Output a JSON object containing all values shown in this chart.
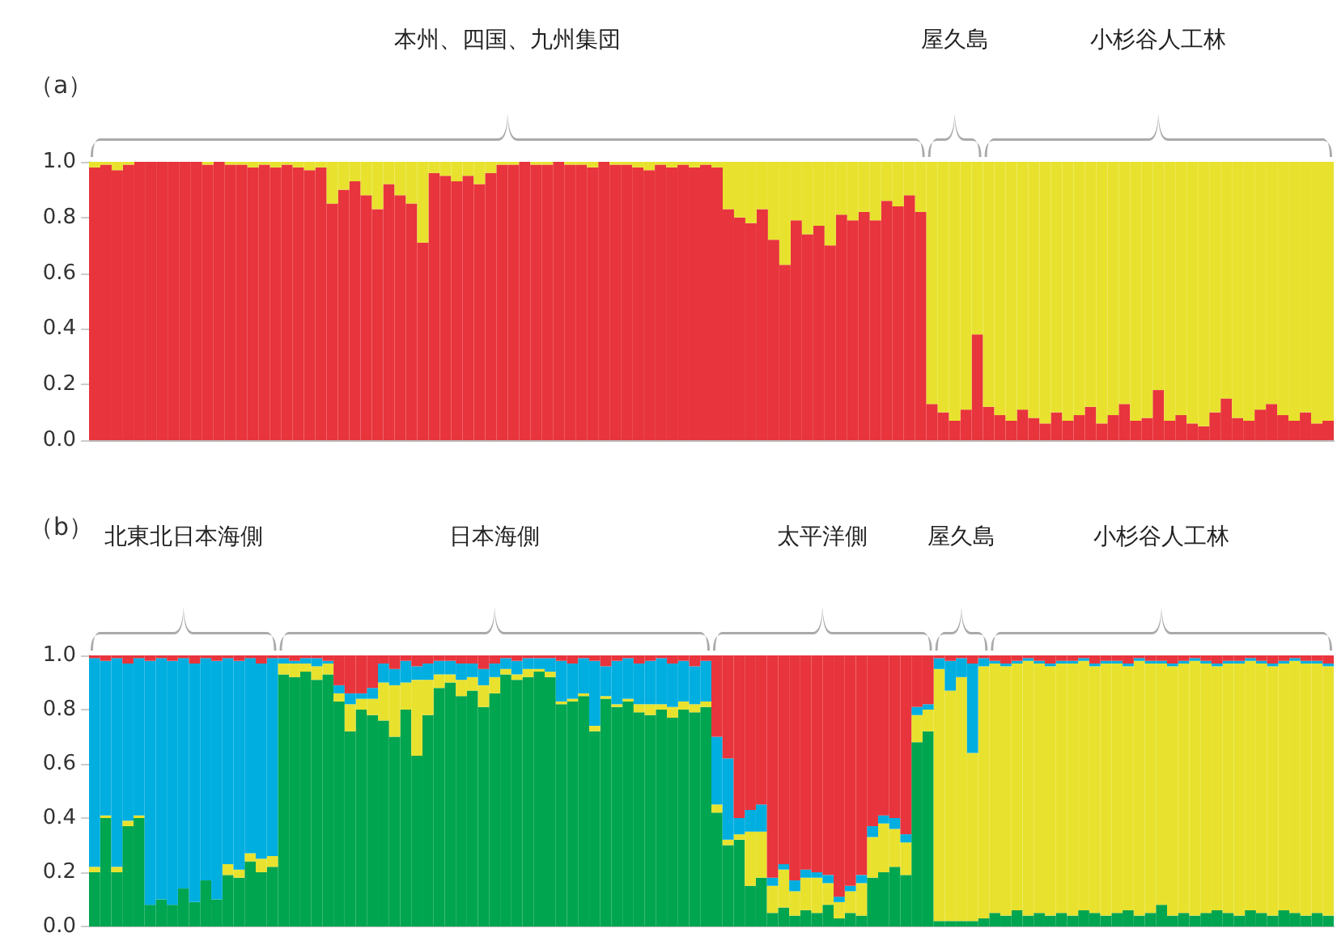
{
  "chart_data": [
    {
      "type": "bar",
      "title": "（a）",
      "stacked": true,
      "tick_labels": "y",
      "grid": false,
      "annotations": [
        "本州、四国、九州集団",
        "屋久島",
        "小杉谷人工林"
      ],
      "ylim": [
        0,
        1
      ],
      "yticks": [
        {
          "value": 0,
          "label": "0.0"
        },
        {
          "value": 0.2,
          "label": "0.2"
        },
        {
          "value": 0.4,
          "label": "0.4"
        },
        {
          "value": 0.6,
          "label": "0.6"
        },
        {
          "value": 0.8,
          "label": "0.8"
        },
        {
          "value": 1,
          "label": "1.0"
        }
      ],
      "categories": [
        null,
        null,
        null,
        null,
        null,
        null,
        null,
        null,
        null,
        null,
        null,
        null,
        null,
        null,
        null,
        null,
        null,
        null,
        null,
        null,
        null,
        null,
        null,
        null,
        null,
        null,
        null,
        null,
        null,
        null,
        null,
        null,
        null,
        null,
        null,
        null,
        null,
        null,
        null,
        null,
        null,
        null,
        null,
        null,
        null,
        null,
        null,
        null,
        null,
        null,
        null,
        null,
        null,
        null,
        null,
        null,
        null,
        null,
        null,
        null,
        null,
        null,
        null,
        null,
        null,
        null,
        null,
        null,
        null,
        null,
        null,
        null,
        null,
        null,
        null,
        null,
        null,
        null,
        null,
        null,
        null,
        null,
        null,
        null,
        null,
        null,
        null,
        null,
        null,
        null,
        null,
        null,
        null,
        null,
        null,
        null,
        null,
        null,
        null,
        null,
        null,
        null,
        null,
        null,
        null,
        null,
        null,
        null,
        null,
        null
      ],
      "series": [
        {
          "color": "#e8343c",
          "values": [
            0.98,
            0.99,
            0.97,
            0.99,
            1,
            1,
            1,
            1,
            1,
            1,
            0.99,
            1,
            0.99,
            0.99,
            0.98,
            0.99,
            0.98,
            0.99,
            0.98,
            0.97,
            0.98,
            0.85,
            0.9,
            0.93,
            0.88,
            0.83,
            0.92,
            0.88,
            0.85,
            0.71,
            0.96,
            0.95,
            0.93,
            0.95,
            0.92,
            0.96,
            0.99,
            0.99,
            1,
            0.99,
            0.99,
            1,
            0.99,
            0.99,
            0.98,
            1,
            0.99,
            0.99,
            0.98,
            0.97,
            0.99,
            0.98,
            0.99,
            0.98,
            0.99,
            0.98,
            0.83,
            0.8,
            0.78,
            0.83,
            0.72,
            0.63,
            0.79,
            0.74,
            0.77,
            0.7,
            0.81,
            0.79,
            0.82,
            0.79,
            0.86,
            0.84,
            0.88,
            0.82,
            0.13,
            0.1,
            0.07,
            0.11,
            0.38,
            0.12,
            0.09,
            0.07,
            0.11,
            0.08,
            0.06,
            0.1,
            0.07,
            0.09,
            0.12,
            0.06,
            0.09,
            0.13,
            0.07,
            0.08,
            0.18,
            0.07,
            0.09,
            0.06,
            0.05,
            0.1,
            0.15,
            0.08,
            0.07,
            0.11,
            0.13,
            0.09,
            0.07,
            0.1,
            0.06,
            0.07
          ]
        },
        {
          "color": "#e8e22e",
          "values": [
            0.02,
            0.01,
            0.03,
            0.01,
            0,
            0,
            0,
            0,
            0,
            0,
            0.01,
            0,
            0.01,
            0.01,
            0.02,
            0.01,
            0.02,
            0.01,
            0.02,
            0.03,
            0.02,
            0.15,
            0.1,
            0.07,
            0.12,
            0.17,
            0.08,
            0.12,
            0.15,
            0.29,
            0.04,
            0.05,
            0.07,
            0.05,
            0.08,
            0.04,
            0.01,
            0.01,
            0,
            0.01,
            0.01,
            0,
            0.01,
            0.01,
            0.02,
            0,
            0.01,
            0.01,
            0.02,
            0.03,
            0.01,
            0.02,
            0.01,
            0.02,
            0.01,
            0.02,
            0.17,
            0.2,
            0.22,
            0.17,
            0.28,
            0.37,
            0.21,
            0.26,
            0.23,
            0.3,
            0.19,
            0.21,
            0.18,
            0.21,
            0.14,
            0.16,
            0.12,
            0.18,
            0.87,
            0.9,
            0.93,
            0.89,
            0.62,
            0.88,
            0.91,
            0.93,
            0.89,
            0.92,
            0.94,
            0.9,
            0.93,
            0.91,
            0.88,
            0.94,
            0.91,
            0.87,
            0.93,
            0.92,
            0.82,
            0.93,
            0.91,
            0.94,
            0.95,
            0.9,
            0.85,
            0.92,
            0.93,
            0.89,
            0.87,
            0.91,
            0.93,
            0.9,
            0.94,
            0.93
          ]
        }
      ]
    },
    {
      "type": "bar",
      "title": "（b）",
      "stacked": true,
      "tick_labels": "y",
      "grid": false,
      "annotations": [
        "北東北日本海側",
        "日本海側",
        "太平洋側",
        "屋久島",
        "小杉谷人工林"
      ],
      "ylim": [
        0,
        1
      ],
      "yticks": [
        {
          "value": 0,
          "label": "0.0"
        },
        {
          "value": 0.2,
          "label": "0.2"
        },
        {
          "value": 0.4,
          "label": "0.4"
        },
        {
          "value": 0.6,
          "label": "0.6"
        },
        {
          "value": 0.8,
          "label": "0.8"
        },
        {
          "value": 1,
          "label": "1.0"
        }
      ],
      "categories": [
        null,
        null,
        null,
        null,
        null,
        null,
        null,
        null,
        null,
        null,
        null,
        null,
        null,
        null,
        null,
        null,
        null,
        null,
        null,
        null,
        null,
        null,
        null,
        null,
        null,
        null,
        null,
        null,
        null,
        null,
        null,
        null,
        null,
        null,
        null,
        null,
        null,
        null,
        null,
        null,
        null,
        null,
        null,
        null,
        null,
        null,
        null,
        null,
        null,
        null,
        null,
        null,
        null,
        null,
        null,
        null,
        null,
        null,
        null,
        null,
        null,
        null,
        null,
        null,
        null,
        null,
        null,
        null,
        null,
        null,
        null,
        null,
        null,
        null,
        null,
        null,
        null,
        null,
        null,
        null,
        null,
        null,
        null,
        null,
        null,
        null,
        null,
        null,
        null,
        null,
        null,
        null,
        null,
        null,
        null,
        null,
        null,
        null,
        null,
        null,
        null,
        null,
        null,
        null,
        null,
        null,
        null,
        null,
        null,
        null,
        null,
        null
      ],
      "series": [
        {
          "color": "#00a54f",
          "values": [
            0.2,
            0.4,
            0.2,
            0.37,
            0.4,
            0.08,
            0.1,
            0.08,
            0.14,
            0.09,
            0.17,
            0.1,
            0.19,
            0.18,
            0.24,
            0.2,
            0.22,
            0.93,
            0.92,
            0.94,
            0.91,
            0.93,
            0.83,
            0.72,
            0.8,
            0.78,
            0.76,
            0.7,
            0.8,
            0.63,
            0.78,
            0.88,
            0.9,
            0.85,
            0.87,
            0.81,
            0.86,
            0.93,
            0.91,
            0.92,
            0.94,
            0.92,
            0.82,
            0.83,
            0.85,
            0.72,
            0.84,
            0.81,
            0.83,
            0.79,
            0.78,
            0.8,
            0.77,
            0.8,
            0.79,
            0.81,
            0.42,
            0.3,
            0.32,
            0.15,
            0.18,
            0.05,
            0.07,
            0.04,
            0.06,
            0.05,
            0.08,
            0.03,
            0.05,
            0.04,
            0.18,
            0.2,
            0.22,
            0.19,
            0.68,
            0.72,
            0.02,
            0.02,
            0.02,
            0.02,
            0.03,
            0.05,
            0.04,
            0.06,
            0.04,
            0.05,
            0.04,
            0.05,
            0.04,
            0.06,
            0.05,
            0.04,
            0.05,
            0.06,
            0.04,
            0.05,
            0.08,
            0.04,
            0.05,
            0.04,
            0.05,
            0.06,
            0.05,
            0.04,
            0.06,
            0.05,
            0.04,
            0.06,
            0.05,
            0.04,
            0.05,
            0.04
          ]
        },
        {
          "color": "#e8e22e",
          "values": [
            0.02,
            0.01,
            0.02,
            0.02,
            0.01,
            0,
            0,
            0,
            0,
            0,
            0,
            0,
            0.04,
            0.03,
            0.03,
            0.05,
            0.04,
            0.04,
            0.05,
            0.03,
            0.05,
            0.04,
            0.03,
            0.1,
            0.04,
            0.06,
            0.14,
            0.19,
            0.1,
            0.28,
            0.13,
            0.05,
            0.03,
            0.06,
            0.05,
            0.08,
            0.06,
            0.02,
            0.02,
            0.03,
            0.01,
            0.02,
            0.01,
            0.01,
            0.01,
            0.02,
            0.01,
            0.01,
            0.01,
            0.03,
            0.04,
            0.02,
            0.04,
            0.03,
            0.03,
            0.02,
            0.03,
            0.02,
            0.02,
            0.2,
            0.17,
            0.1,
            0.14,
            0.09,
            0.12,
            0.13,
            0.08,
            0.06,
            0.08,
            0.12,
            0.15,
            0.18,
            0.14,
            0.12,
            0.1,
            0.08,
            0.93,
            0.85,
            0.9,
            0.62,
            0.93,
            0.92,
            0.92,
            0.91,
            0.94,
            0.92,
            0.92,
            0.92,
            0.93,
            0.92,
            0.91,
            0.93,
            0.92,
            0.9,
            0.94,
            0.92,
            0.89,
            0.92,
            0.92,
            0.94,
            0.92,
            0.9,
            0.92,
            0.93,
            0.92,
            0.92,
            0.92,
            0.91,
            0.93,
            0.93,
            0.92,
            0.92
          ]
        },
        {
          "color": "#00aee0",
          "values": [
            0.77,
            0.57,
            0.77,
            0.58,
            0.58,
            0.9,
            0.89,
            0.9,
            0.85,
            0.88,
            0.82,
            0.88,
            0.76,
            0.77,
            0.72,
            0.72,
            0.73,
            0.02,
            0.01,
            0.02,
            0.03,
            0.01,
            0.03,
            0.04,
            0.02,
            0.04,
            0.07,
            0.06,
            0.08,
            0.05,
            0.06,
            0.05,
            0.05,
            0.06,
            0.05,
            0.06,
            0.05,
            0.04,
            0.05,
            0.04,
            0.04,
            0.05,
            0.15,
            0.13,
            0.13,
            0.24,
            0.11,
            0.16,
            0.15,
            0.15,
            0.16,
            0.17,
            0.16,
            0.15,
            0.14,
            0.15,
            0.25,
            0.3,
            0.06,
            0.08,
            0.1,
            0.03,
            0.02,
            0.04,
            0.03,
            0.02,
            0.03,
            0.02,
            0.02,
            0.03,
            0.04,
            0.03,
            0.04,
            0.03,
            0.03,
            0.02,
            0.04,
            0.11,
            0.07,
            0.33,
            0.03,
            0.01,
            0.01,
            0.01,
            0.01,
            0.01,
            0.01,
            0.01,
            0.01,
            0.01,
            0.01,
            0.01,
            0.01,
            0.01,
            0.01,
            0.01,
            0.01,
            0.01,
            0.01,
            0.01,
            0.01,
            0.01,
            0.01,
            0.01,
            0.01,
            0.01,
            0.01,
            0.01,
            0.01,
            0.01,
            0.01,
            0.01
          ]
        },
        {
          "color": "#e8343c",
          "values": [
            0.01,
            0.02,
            0.01,
            0.03,
            0.01,
            0.02,
            0.01,
            0.02,
            0.01,
            0.03,
            0.01,
            0.02,
            0.01,
            0.02,
            0.01,
            0.03,
            0.01,
            0.01,
            0.02,
            0.01,
            0.01,
            0.02,
            0.11,
            0.14,
            0.14,
            0.12,
            0.03,
            0.05,
            0.02,
            0.04,
            0.03,
            0.02,
            0.02,
            0.03,
            0.03,
            0.05,
            0.03,
            0.01,
            0.02,
            0.01,
            0.01,
            0.01,
            0.02,
            0.03,
            0.01,
            0.02,
            0.04,
            0.02,
            0.01,
            0.03,
            0.02,
            0.01,
            0.03,
            0.02,
            0.04,
            0.02,
            0.3,
            0.38,
            0.6,
            0.57,
            0.55,
            0.82,
            0.77,
            0.83,
            0.79,
            0.8,
            0.81,
            0.89,
            0.85,
            0.81,
            0.63,
            0.59,
            0.6,
            0.66,
            0.19,
            0.18,
            0.01,
            0.02,
            0.01,
            0.03,
            0.01,
            0.02,
            0.03,
            0.02,
            0.01,
            0.02,
            0.03,
            0.02,
            0.02,
            0.01,
            0.03,
            0.02,
            0.02,
            0.03,
            0.01,
            0.02,
            0.02,
            0.03,
            0.02,
            0.01,
            0.02,
            0.03,
            0.02,
            0.02,
            0.01,
            0.02,
            0.03,
            0.02,
            0.01,
            0.02,
            0.02,
            0.03
          ]
        }
      ]
    }
  ]
}
